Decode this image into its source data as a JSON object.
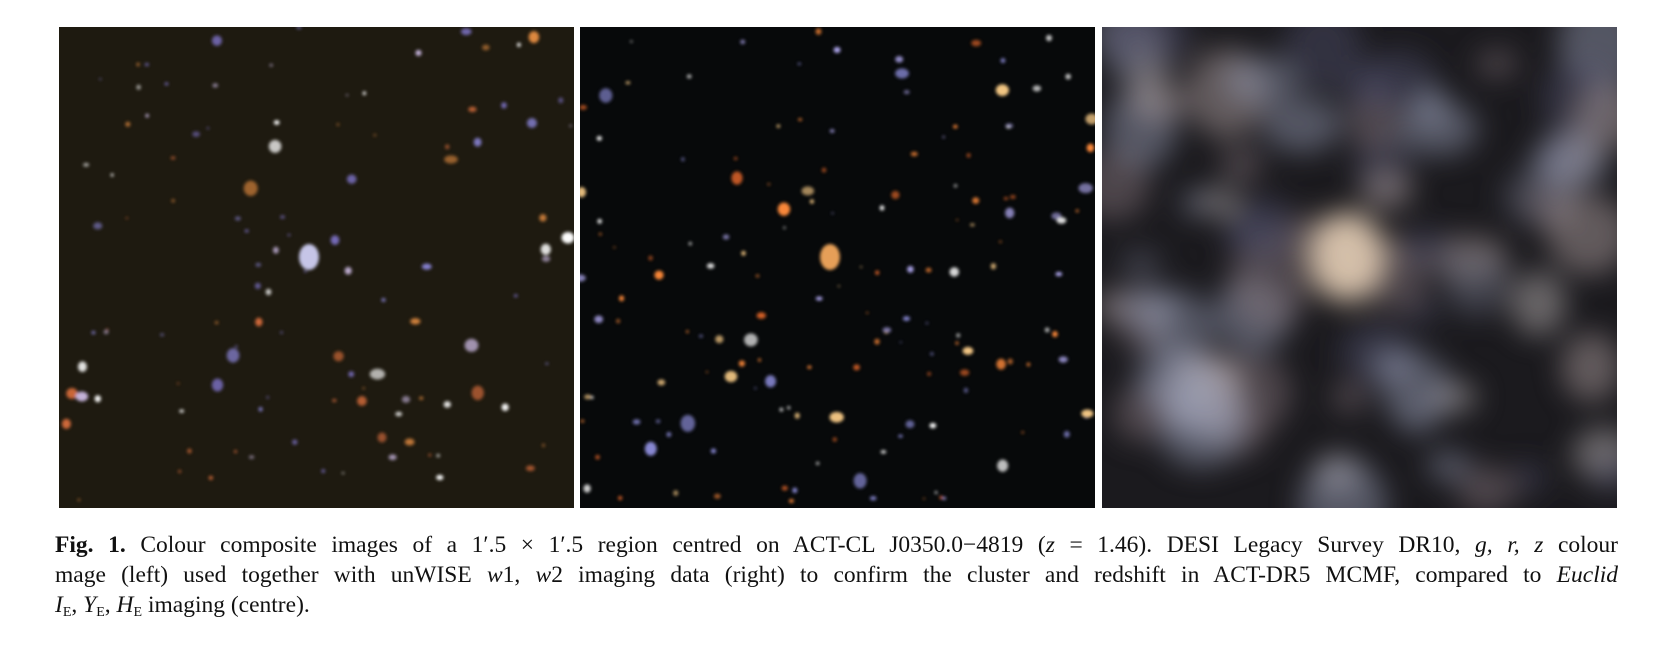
{
  "figure": {
    "panels": [
      "DESI Legacy Survey DR10",
      "Euclid",
      "unWISE"
    ],
    "caption": {
      "lines": [
        [
          {
            "text": "Fig. 1.",
            "style": "bold"
          },
          {
            "text": " Colour composite images of a 1′.5 × 1′.5 region centred on ACT-CL J0350.0−4819 (",
            "style": "normal"
          },
          {
            "text": "z",
            "style": "italic"
          },
          {
            "text": " = 1.46). DESI Legacy Survey DR10, ",
            "style": "normal"
          },
          {
            "text": "g, r, z",
            "style": "italic"
          },
          {
            "text": " colour",
            "style": "normal"
          }
        ],
        [
          {
            "text": "mage (left) used together with unWISE ",
            "style": "normal"
          },
          {
            "text": "w",
            "style": "italic"
          },
          {
            "text": "1, ",
            "style": "normal"
          },
          {
            "text": "w",
            "style": "italic"
          },
          {
            "text": "2 imaging data (right) to confirm the cluster and redshift in ACT-DR5 MCMF, compared to ",
            "style": "normal"
          },
          {
            "text": "Euclid",
            "style": "italic"
          }
        ],
        [
          {
            "text": "I",
            "style": "italic"
          },
          {
            "text": "E",
            "style": "sub"
          },
          {
            "text": ", ",
            "style": "normal"
          },
          {
            "text": "Y",
            "style": "italic"
          },
          {
            "text": "E",
            "style": "sub"
          },
          {
            "text": ", ",
            "style": "normal"
          },
          {
            "text": "H",
            "style": "italic"
          },
          {
            "text": "E",
            "style": "sub"
          },
          {
            "text": " imaging (centre).",
            "style": "normal"
          }
        ]
      ]
    }
  }
}
